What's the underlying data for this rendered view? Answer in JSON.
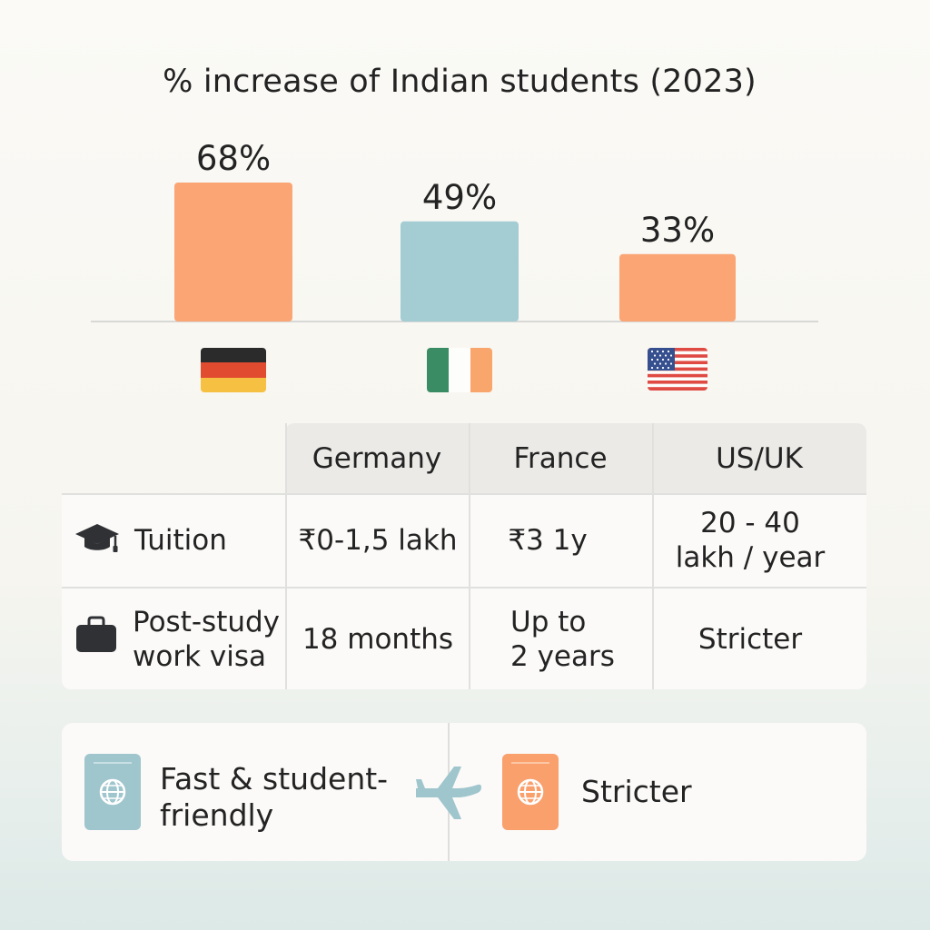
{
  "chart_data": {
    "type": "bar",
    "title": "% increase of Indian students (2023)",
    "categories": [
      "Germany",
      "Ireland",
      "United States"
    ],
    "values": [
      68,
      49,
      33
    ],
    "value_labels": [
      "68%",
      "49%",
      "33%"
    ],
    "bar_colors": [
      "#fba574",
      "#a3ccd3",
      "#fba574"
    ],
    "category_marks": [
      "germany-flag-icon",
      "ireland-flag-icon",
      "us-flag-icon"
    ],
    "ylim": [
      0,
      68
    ],
    "grid": false
  },
  "table": {
    "columns": [
      "Germany",
      "France",
      "US/UK"
    ],
    "rows": [
      {
        "label": "Tuition",
        "icon": "graduation-cap-icon",
        "cells": [
          "₹0-1,5 lakh",
          "₹3 1y",
          "20 - 40\nlakh / year"
        ]
      },
      {
        "label": "Post-study\nwork visa",
        "icon": "briefcase-icon",
        "cells": [
          "18 months",
          "Up to\n2 years",
          "Stricter"
        ]
      }
    ]
  },
  "visa": {
    "left_text": "Fast & student-\nfriendly",
    "right_text": "Stricter",
    "left_icon": "passport-icon",
    "middle_icon": "airplane-icon",
    "right_icon": "passport-icon",
    "left_color": "#9fc5cd",
    "right_color": "#f9a06d"
  },
  "colors": {
    "accent_orange": "#fba574",
    "accent_blue": "#a3ccd3",
    "axis": "#d8d8d6"
  }
}
